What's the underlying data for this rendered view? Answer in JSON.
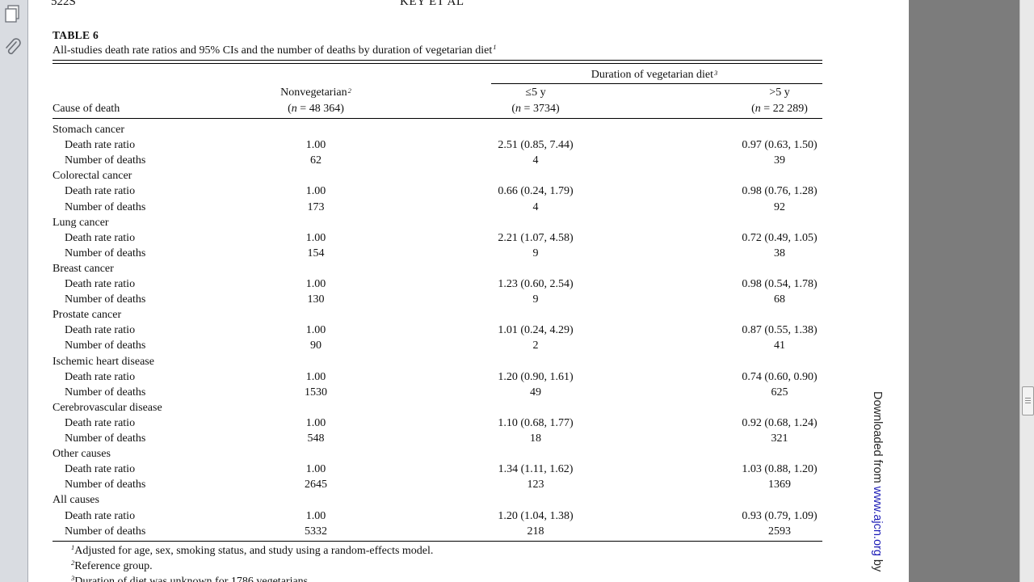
{
  "header": {
    "page_number": "522S",
    "authors": "KEY ET AL"
  },
  "table": {
    "label": "TABLE 6",
    "caption": "All-studies death rate ratios and 95% CIs and the number of deaths by duration of vegetarian diet",
    "caption_note": "1",
    "spanner": "Duration of vegetarian diet",
    "spanner_note": "3",
    "columns": {
      "cause": "Cause of death",
      "nonveg": "Nonvegetarian",
      "nonveg_note": "2",
      "nonveg_n_prefix": "(",
      "nonveg_n_n": "n",
      "nonveg_n_rest": " = 48 364)",
      "short": "≤5 y",
      "short_n_prefix": "(",
      "short_n_n": "n",
      "short_n_rest": " = 3734)",
      "long": ">5 y",
      "long_n_prefix": "(",
      "long_n_n": "n",
      "long_n_rest": " = 22 289)"
    },
    "groups": [
      {
        "name": "Stomach cancer",
        "rows": [
          {
            "label": "Death rate ratio",
            "nonveg": "1.00",
            "short": "2.51 (0.85, 7.44)",
            "long": "0.97 (0.63, 1.50)"
          },
          {
            "label": "Number of deaths",
            "nonveg": "62",
            "short": "4",
            "long": "39"
          }
        ]
      },
      {
        "name": "Colorectal cancer",
        "rows": [
          {
            "label": "Death rate ratio",
            "nonveg": "1.00",
            "short": "0.66 (0.24, 1.79)",
            "long": "0.98 (0.76, 1.28)"
          },
          {
            "label": "Number of deaths",
            "nonveg": "173",
            "short": "4",
            "long": "92"
          }
        ]
      },
      {
        "name": "Lung cancer",
        "rows": [
          {
            "label": "Death rate ratio",
            "nonveg": "1.00",
            "short": "2.21 (1.07, 4.58)",
            "long": "0.72 (0.49, 1.05)"
          },
          {
            "label": "Number of deaths",
            "nonveg": "154",
            "short": "9",
            "long": "38"
          }
        ]
      },
      {
        "name": "Breast cancer",
        "rows": [
          {
            "label": "Death rate ratio",
            "nonveg": "1.00",
            "short": "1.23 (0.60, 2.54)",
            "long": "0.98 (0.54, 1.78)"
          },
          {
            "label": "Number of deaths",
            "nonveg": "130",
            "short": "9",
            "long": "68"
          }
        ]
      },
      {
        "name": "Prostate cancer",
        "rows": [
          {
            "label": "Death rate ratio",
            "nonveg": "1.00",
            "short": "1.01 (0.24, 4.29)",
            "long": "0.87 (0.55, 1.38)"
          },
          {
            "label": "Number of deaths",
            "nonveg": "90",
            "short": "2",
            "long": "41"
          }
        ]
      },
      {
        "name": "Ischemic heart disease",
        "rows": [
          {
            "label": "Death rate ratio",
            "nonveg": "1.00",
            "short": "1.20 (0.90, 1.61)",
            "long": "0.74 (0.60, 0.90)"
          },
          {
            "label": "Number of deaths",
            "nonveg": "1530",
            "short": "49",
            "long": "625"
          }
        ]
      },
      {
        "name": "Cerebrovascular disease",
        "rows": [
          {
            "label": "Death rate ratio",
            "nonveg": "1.00",
            "short": "1.10 (0.68, 1.77)",
            "long": "0.92 (0.68, 1.24)"
          },
          {
            "label": "Number of deaths",
            "nonveg": "548",
            "short": "18",
            "long": "321"
          }
        ]
      },
      {
        "name": "Other causes",
        "rows": [
          {
            "label": "Death rate ratio",
            "nonveg": "1.00",
            "short": "1.34 (1.11, 1.62)",
            "long": "1.03 (0.88, 1.20)"
          },
          {
            "label": "Number of deaths",
            "nonveg": "2645",
            "short": "123",
            "long": "1369"
          }
        ]
      },
      {
        "name": "All causes",
        "rows": [
          {
            "label": "Death rate ratio",
            "nonveg": "1.00",
            "short": "1.20 (1.04, 1.38)",
            "long": "0.93 (0.79, 1.09)"
          },
          {
            "label": "Number of deaths",
            "nonveg": "5332",
            "short": "218",
            "long": "2593"
          }
        ]
      }
    ],
    "footnotes": [
      {
        "mark": "1",
        "text": "Adjusted for age, sex, smoking status, and study using a random-effects model."
      },
      {
        "mark": "2",
        "text": "Reference group."
      },
      {
        "mark": "3",
        "text": "Duration of diet was unknown for 1786 vegetarians."
      }
    ]
  },
  "side_note": {
    "prefix": "Downloaded from ",
    "link": "www.ajcn.org",
    "suffix": " by"
  },
  "toolbar": {
    "pages_icon": "pages-icon",
    "attachment_icon": "paperclip-icon"
  },
  "colors": {
    "link": "#1a1ab5",
    "viewer_bg": "#7c7c7c",
    "toolbar_bg": "#d9dce1"
  }
}
